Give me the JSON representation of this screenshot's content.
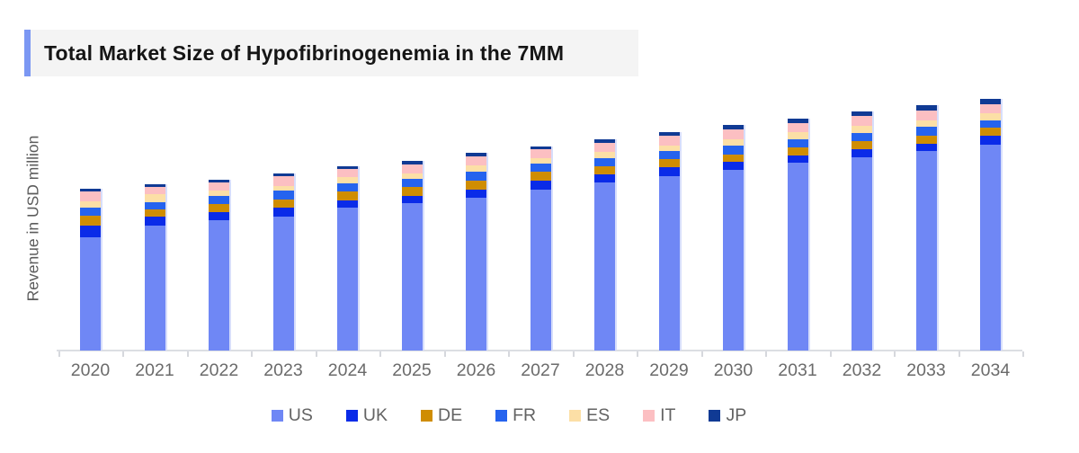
{
  "title": {
    "text": "Total Market Size of Hypofibrinogenemia in the 7MM"
  },
  "y_axis": {
    "label": "Revenue in USD million"
  },
  "colors": {
    "title_accent": "#7b97f3",
    "title_band_bg": "#f4f4f4",
    "axis_line": "#dcdee3",
    "x_label_text": "#6b6b6b"
  },
  "chart_data": {
    "type": "bar",
    "stacked": true,
    "title": "Total Market Size of Hypofibrinogenemia in the 7MM",
    "xlabel": "",
    "ylabel": "Revenue in USD million",
    "y_tick_labels": "none (y-axis shows no numeric ticks; values below are relative height units read from the pixels)",
    "grid": "off",
    "legend_position": "bottom",
    "categories": [
      "2020",
      "2021",
      "2022",
      "2023",
      "2024",
      "2025",
      "2026",
      "2027",
      "2028",
      "2029",
      "2030",
      "2031",
      "2032",
      "2033",
      "2034"
    ],
    "series": [
      {
        "name": "US",
        "color": "#6f87f5",
        "values": [
          126,
          139,
          145,
          149,
          159,
          164,
          170,
          179,
          187,
          194,
          201,
          209,
          215,
          222,
          229
        ]
      },
      {
        "name": "UK",
        "color": "#0a2be8",
        "values": [
          13,
          10,
          9,
          10,
          8,
          8,
          9.5,
          10,
          9,
          10,
          9,
          8.5,
          9,
          8.5,
          10
        ]
      },
      {
        "name": "DE",
        "color": "#cf8d02",
        "values": [
          11,
          8,
          9,
          9.5,
          10,
          10,
          10,
          10,
          9.5,
          9,
          8.5,
          9,
          9.5,
          9,
          9.5
        ]
      },
      {
        "name": "FR",
        "color": "#2563ee",
        "values": [
          9,
          8.5,
          9,
          9.5,
          9,
          9,
          10,
          9.5,
          9,
          9,
          9.5,
          9,
          9,
          9.5,
          8
        ]
      },
      {
        "name": "ES",
        "color": "#fcdfa6",
        "values": [
          7,
          8.5,
          6,
          5.5,
          7,
          6.5,
          7,
          5.5,
          7,
          6.5,
          7.5,
          8,
          7.5,
          7.5,
          8
        ]
      },
      {
        "name": "IT",
        "color": "#fcbfc2",
        "values": [
          11,
          8,
          9,
          10.5,
          9,
          10,
          10,
          10,
          10,
          10.5,
          10.5,
          10,
          11,
          11,
          10
        ]
      },
      {
        "name": "JP",
        "color": "#103a94",
        "values": [
          3,
          3,
          3,
          3,
          3,
          3.5,
          3.5,
          3.5,
          4,
          4,
          5,
          5,
          5,
          5.5,
          5.5
        ]
      }
    ],
    "totals_relative": [
      180,
      185,
      190,
      197,
      205,
      211,
      220,
      228,
      236,
      243.5,
      251,
      258.5,
      266,
      273,
      280
    ]
  }
}
